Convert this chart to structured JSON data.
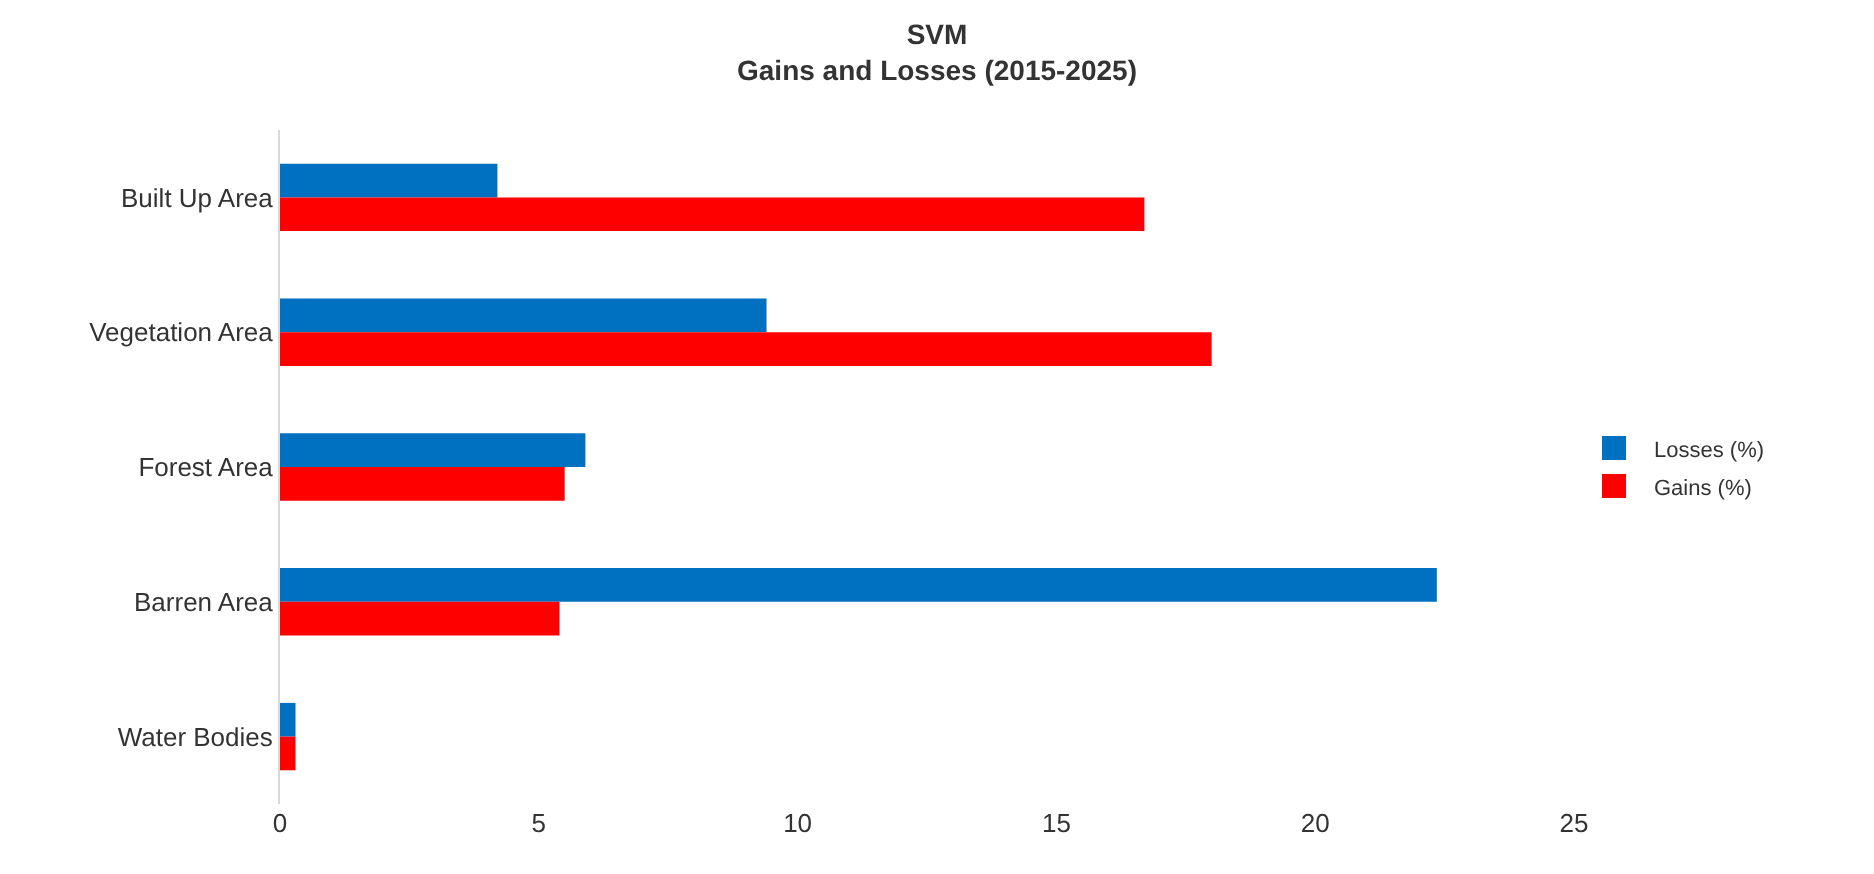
{
  "chart_data": {
    "type": "bar",
    "orientation": "horizontal",
    "title": "SVM\nGains and Losses (2015-2025)",
    "categories": [
      "Built Up Area",
      "Vegetation Area",
      "Forest Area",
      "Barren Area",
      "Water Bodies"
    ],
    "series": [
      {
        "name": "Losses (%)",
        "color": "#0070c0",
        "values": [
          4.2,
          9.4,
          5.9,
          22.35,
          0.3
        ]
      },
      {
        "name": "Gains (%)",
        "color": "#ff0000",
        "values": [
          16.7,
          18.0,
          5.5,
          5.4,
          0.3
        ]
      }
    ],
    "xlim": [
      0,
      25
    ],
    "xticks": [
      0,
      5,
      10,
      15,
      20,
      25
    ],
    "legend": "right"
  }
}
